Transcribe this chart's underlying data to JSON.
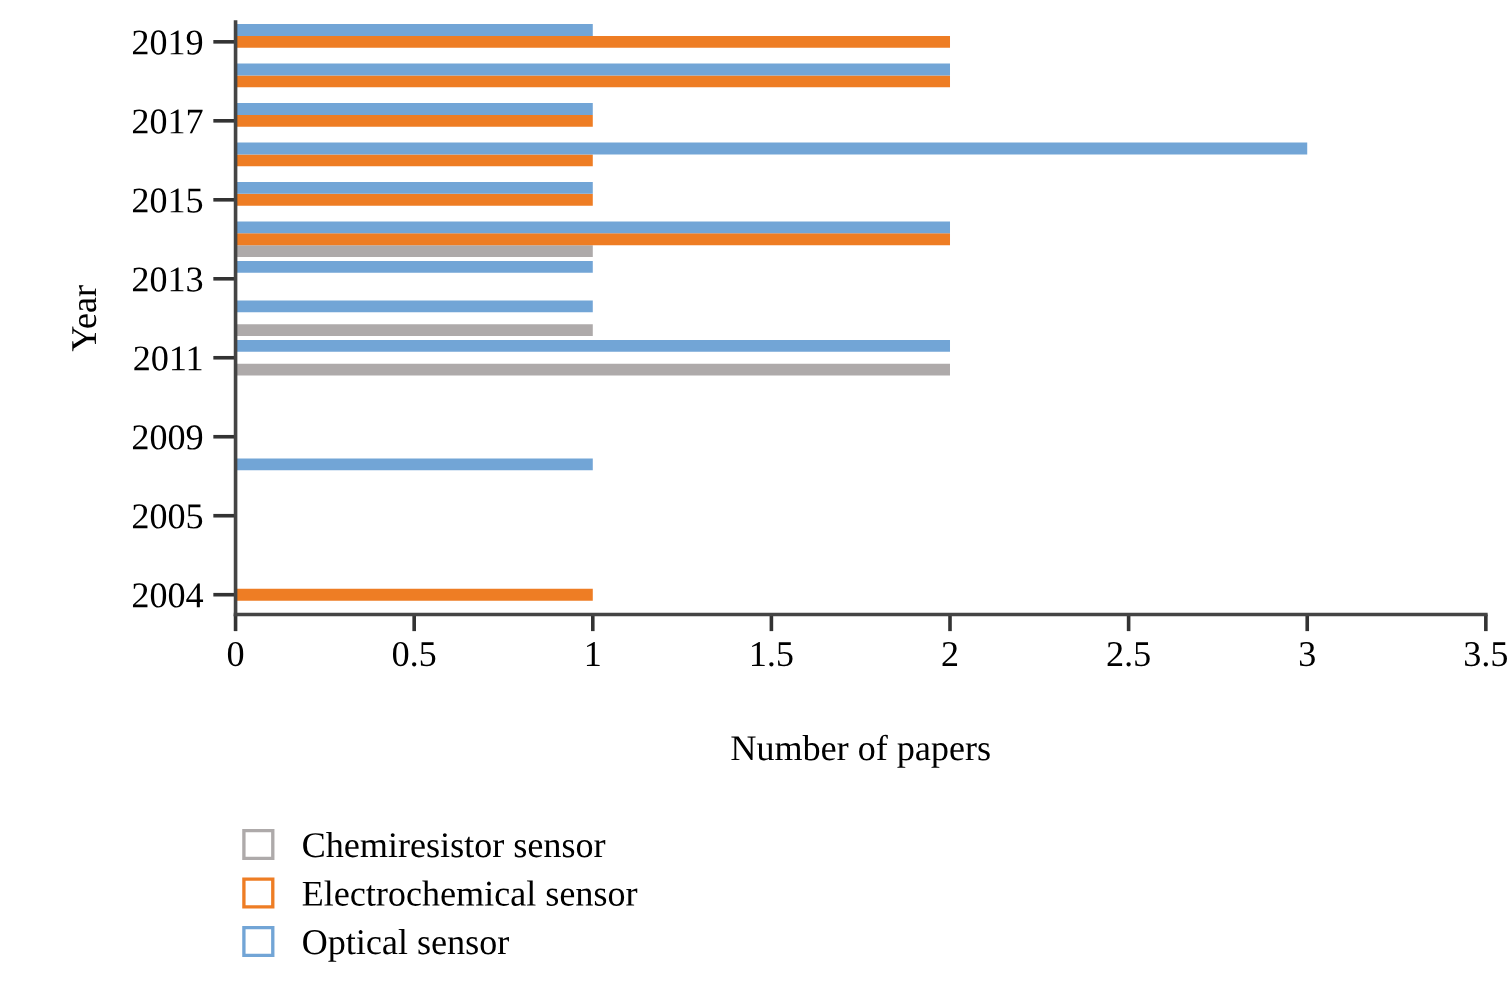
{
  "chart_data": {
    "type": "bar",
    "orientation": "horizontal",
    "xlabel": "Number of papers",
    "ylabel": "Year",
    "categories": [
      "2019",
      null,
      "2017",
      null,
      "2015",
      null,
      "2013",
      null,
      "2011",
      null,
      "2009",
      null,
      "2005",
      null,
      "2004"
    ],
    "series": [
      {
        "name": "Chemiresistor sensor",
        "color": "#aeaaaa",
        "values": [
          null,
          null,
          null,
          null,
          null,
          1,
          null,
          1,
          2,
          null,
          null,
          null,
          null,
          null,
          null
        ]
      },
      {
        "name": "Electrochemical sensor",
        "color": "#ee7d24",
        "values": [
          2,
          2,
          1,
          1,
          1,
          2,
          null,
          null,
          null,
          null,
          null,
          null,
          null,
          null,
          1
        ]
      },
      {
        "name": "Optical sensor",
        "color": "#72a5d6",
        "values": [
          1,
          2,
          1,
          3,
          1,
          2,
          1,
          1,
          2,
          null,
          null,
          1,
          null,
          null,
          null
        ]
      }
    ],
    "xlim": [
      0,
      3.5
    ],
    "xticks": [
      0,
      0.5,
      1,
      1.5,
      2,
      2.5,
      3,
      3.5
    ],
    "grid": false,
    "legend": "bottom left"
  }
}
